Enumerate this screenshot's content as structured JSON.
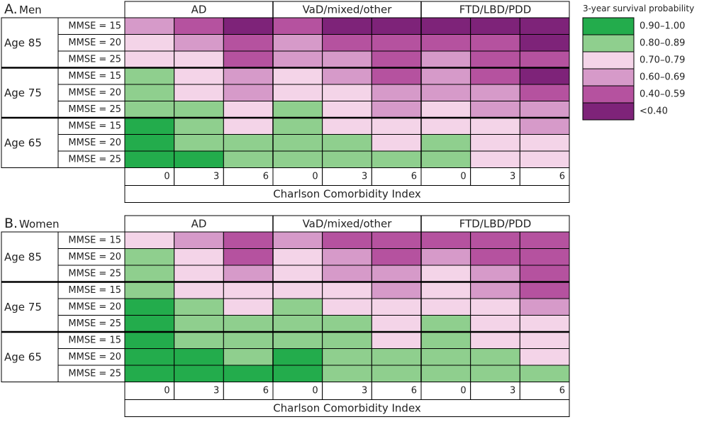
{
  "colors": {
    "c0": "#23ac4c",
    "c1": "#8fcf8e",
    "c2": "#f4d4e8",
    "c3": "#d69ac9",
    "c4": "#b5529f",
    "c5": "#7e2379"
  },
  "chart_data": [
    {
      "type": "heatmap",
      "panel_letter": "A.",
      "title": "Men",
      "groups": [
        "AD",
        "VaD/mixed/other",
        "FTD/LBD/PDD"
      ],
      "x_ticks": [
        "0",
        "3",
        "6"
      ],
      "xlabel": "Charlson Comorbidity Index",
      "ages": [
        "Age 85",
        "Age 75",
        "Age 65"
      ],
      "mmse": [
        "MMSE = 15",
        "MMSE = 20",
        "MMSE = 25"
      ],
      "cells": [
        [
          3,
          4,
          5,
          4,
          5,
          5,
          5,
          5,
          5
        ],
        [
          2,
          3,
          4,
          3,
          4,
          4,
          4,
          4,
          5
        ],
        [
          2,
          2,
          4,
          3,
          3,
          4,
          3,
          4,
          4
        ],
        [
          1,
          2,
          3,
          2,
          3,
          4,
          3,
          4,
          5
        ],
        [
          1,
          2,
          3,
          2,
          2,
          3,
          3,
          3,
          4
        ],
        [
          1,
          1,
          2,
          1,
          2,
          3,
          2,
          3,
          3
        ],
        [
          0,
          1,
          2,
          1,
          2,
          2,
          2,
          2,
          3
        ],
        [
          0,
          1,
          1,
          1,
          1,
          2,
          1,
          2,
          2
        ],
        [
          0,
          0,
          1,
          1,
          1,
          1,
          1,
          2,
          2
        ]
      ]
    },
    {
      "type": "heatmap",
      "panel_letter": "B.",
      "title": "Women",
      "groups": [
        "AD",
        "VaD/mixed/other",
        "FTD/LBD/PDD"
      ],
      "x_ticks": [
        "0",
        "3",
        "6"
      ],
      "xlabel": "Charlson Comorbidity Index",
      "ages": [
        "Age 85",
        "Age 75",
        "Age 65"
      ],
      "mmse": [
        "MMSE = 15",
        "MMSE = 20",
        "MMSE = 25"
      ],
      "cells": [
        [
          2,
          3,
          4,
          3,
          4,
          4,
          4,
          4,
          4
        ],
        [
          1,
          2,
          4,
          2,
          3,
          4,
          3,
          4,
          4
        ],
        [
          1,
          2,
          3,
          2,
          3,
          3,
          2,
          3,
          4
        ],
        [
          1,
          2,
          2,
          2,
          2,
          3,
          2,
          3,
          4
        ],
        [
          0,
          1,
          2,
          1,
          2,
          2,
          2,
          2,
          3
        ],
        [
          0,
          1,
          1,
          1,
          1,
          2,
          1,
          2,
          2
        ],
        [
          0,
          1,
          1,
          1,
          1,
          2,
          1,
          2,
          2
        ],
        [
          0,
          0,
          1,
          0,
          1,
          1,
          1,
          1,
          2
        ],
        [
          0,
          0,
          0,
          0,
          1,
          1,
          1,
          1,
          1
        ]
      ]
    }
  ],
  "legend": {
    "title": "3-year survival probability",
    "placement": "top-right",
    "items": [
      "0.90–1.00",
      "0.80–0.89",
      "0.70–0.79",
      "0.60–0.69",
      "0.40–0.59",
      "<0.40"
    ]
  }
}
